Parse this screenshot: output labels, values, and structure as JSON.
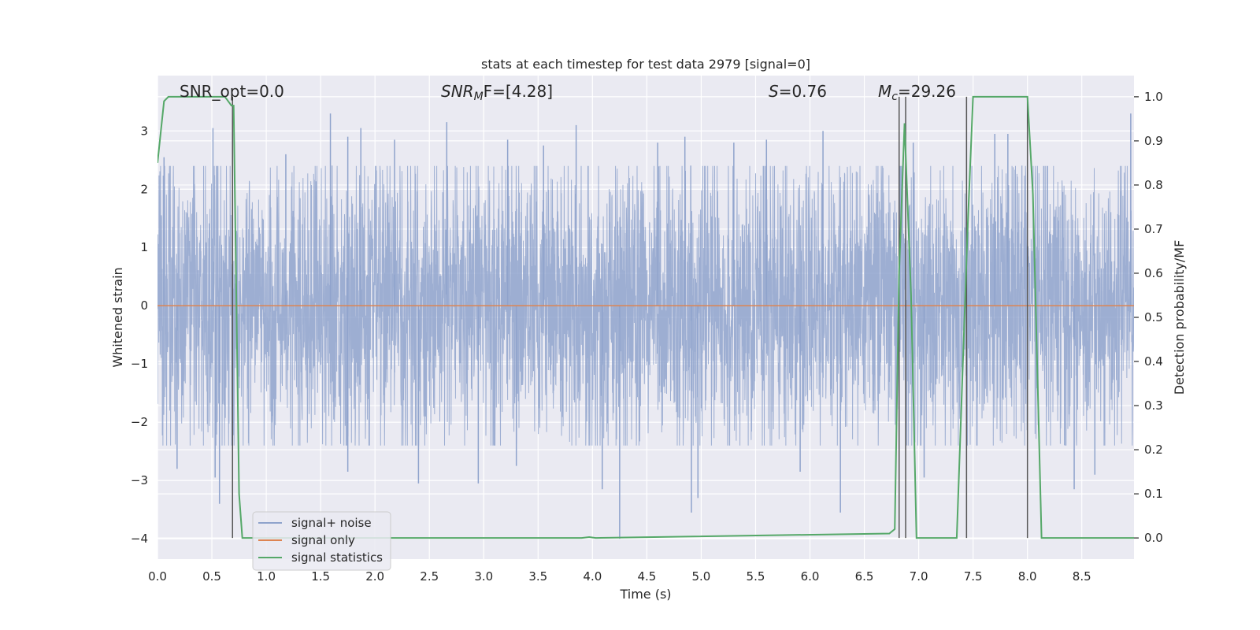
{
  "chart_data": {
    "type": "line",
    "title": "stats at each timestep for test data 2979 [signal=0]",
    "xlabel": "Time (s)",
    "ylabel": "Whitened strain",
    "y2label": "Detection probability/MF",
    "xlim": [
      0.0,
      8.98
    ],
    "ylim": [
      -4.35,
      3.95
    ],
    "y2lim": [
      -0.048,
      1.048
    ],
    "x_ticks": [
      0.0,
      0.5,
      1.0,
      1.5,
      2.0,
      2.5,
      3.0,
      3.5,
      4.0,
      4.5,
      5.0,
      5.5,
      6.0,
      6.5,
      7.0,
      7.5,
      8.0,
      8.5
    ],
    "x_tick_labels": [
      "0.0",
      "0.5",
      "1.0",
      "1.5",
      "2.0",
      "2.5",
      "3.0",
      "3.5",
      "4.0",
      "4.5",
      "5.0",
      "5.5",
      "6.0",
      "6.5",
      "7.0",
      "7.5",
      "8.0",
      "8.5"
    ],
    "y_ticks": [
      3,
      2,
      1,
      0,
      -1,
      -2,
      -3,
      -4
    ],
    "y_tick_labels": [
      "3",
      "2",
      "1",
      "0",
      "−1",
      "−2",
      "−3",
      "−4"
    ],
    "y2_ticks": [
      1.0,
      0.9,
      0.8,
      0.7,
      0.6,
      0.5,
      0.4,
      0.3,
      0.2,
      0.1,
      0.0
    ],
    "y2_tick_labels": [
      "1.0",
      "0.9",
      "0.8",
      "0.7",
      "0.6",
      "0.5",
      "0.4",
      "0.3",
      "0.2",
      "0.1",
      "0.0"
    ],
    "grid": true,
    "legend_position": "lower-left",
    "annotations": {
      "snr_opt": "SNR_opt=0.0",
      "snr_mf_sym": "SNR",
      "snr_mf_sub": "M",
      "snr_mf_rest": "F=[4.28]",
      "s_sym": "S",
      "s_rest": "=0.76",
      "mc_sym": "M",
      "mc_sub": "c",
      "mc_rest": "=29.26"
    },
    "series": [
      {
        "name": "signal+ noise",
        "color": "#8fa3cc",
        "envelope": {
          "core_abs": 1.3,
          "typical_peak": 2.4,
          "sample_rate": 500
        },
        "spikes": [
          {
            "x": 0.06,
            "y": 2.55
          },
          {
            "x": 0.51,
            "y": 3.05
          },
          {
            "x": 0.69,
            "y": 2.95
          },
          {
            "x": 1.18,
            "y": 2.6
          },
          {
            "x": 1.59,
            "y": 3.3
          },
          {
            "x": 1.75,
            "y": 2.9
          },
          {
            "x": 1.87,
            "y": 3.05
          },
          {
            "x": 2.18,
            "y": 2.85
          },
          {
            "x": 2.66,
            "y": 3.15
          },
          {
            "x": 3.22,
            "y": 2.85
          },
          {
            "x": 3.55,
            "y": 2.75
          },
          {
            "x": 3.85,
            "y": 3.1
          },
          {
            "x": 4.6,
            "y": 2.8
          },
          {
            "x": 4.85,
            "y": 2.9
          },
          {
            "x": 5.3,
            "y": 2.8
          },
          {
            "x": 5.6,
            "y": 2.85
          },
          {
            "x": 6.12,
            "y": 3.0
          },
          {
            "x": 6.95,
            "y": 2.8
          },
          {
            "x": 7.7,
            "y": 2.95
          },
          {
            "x": 7.82,
            "y": 2.95
          },
          {
            "x": 8.95,
            "y": 3.3
          },
          {
            "x": 0.18,
            "y": -2.8
          },
          {
            "x": 0.53,
            "y": -2.95
          },
          {
            "x": 0.57,
            "y": -3.4
          },
          {
            "x": 1.75,
            "y": -2.85
          },
          {
            "x": 2.4,
            "y": -3.05
          },
          {
            "x": 2.95,
            "y": -3.05
          },
          {
            "x": 3.3,
            "y": -2.75
          },
          {
            "x": 4.09,
            "y": -3.15
          },
          {
            "x": 4.25,
            "y": -4.0
          },
          {
            "x": 4.91,
            "y": -3.55
          },
          {
            "x": 4.97,
            "y": -3.3
          },
          {
            "x": 5.91,
            "y": -2.85
          },
          {
            "x": 6.28,
            "y": -3.55
          },
          {
            "x": 7.05,
            "y": -2.95
          },
          {
            "x": 8.43,
            "y": -3.15
          },
          {
            "x": 8.62,
            "y": -2.9
          }
        ]
      },
      {
        "name": "signal only",
        "color": "#dd8452",
        "x": [
          0.0,
          8.98
        ],
        "y": [
          0.0,
          0.0
        ]
      },
      {
        "name": "signal statistics",
        "color": "#55a868",
        "axis": "right",
        "x": [
          0.0,
          0.06,
          0.1,
          0.5,
          0.62,
          0.68,
          0.7,
          0.75,
          0.78,
          3.9,
          3.97,
          4.03,
          6.73,
          6.78,
          6.82,
          6.87,
          6.93,
          6.98,
          7.35,
          7.45,
          7.5,
          8.0,
          8.05,
          8.13,
          8.98
        ],
        "y": [
          0.85,
          0.99,
          1.0,
          1.0,
          1.0,
          0.98,
          0.98,
          0.1,
          0.0,
          0.0,
          0.002,
          0.0,
          0.01,
          0.02,
          0.6,
          0.94,
          0.55,
          0.0,
          0.0,
          0.7,
          1.0,
          1.0,
          0.78,
          0.0,
          0.0
        ]
      }
    ],
    "vertical_markers": [
      0.69,
      6.82,
      6.88,
      7.44,
      8.0
    ]
  }
}
